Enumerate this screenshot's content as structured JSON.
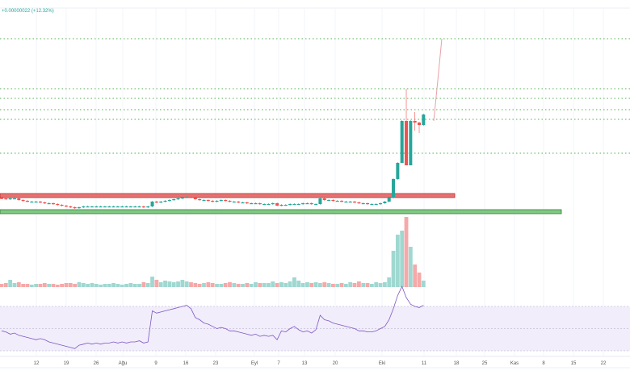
{
  "header": {
    "change_text": "+0.00000022 (+12.32%)"
  },
  "colors": {
    "up": "#26a69a",
    "down": "#ef5350",
    "up_volume": "#9fd8d1",
    "down_volume": "#f5a9a8",
    "level_line": "#4caf50",
    "resistance_band": "#e57373",
    "support_band": "#81c784",
    "rsi_line": "#7e57c2",
    "rsi_band": "#f1edfb",
    "projection": "#e8a0a8"
  },
  "chart_data": {
    "type": "candlestick",
    "x_ticks": [
      "12",
      "19",
      "26",
      "Ağu",
      "9",
      "16",
      "23",
      "Eyl",
      "7",
      "13",
      "20",
      "Eki",
      "11",
      "18",
      "25",
      "Kas",
      "8",
      "15",
      "22"
    ],
    "closes": [
      24,
      23,
      24,
      24,
      22,
      21,
      20,
      20,
      20,
      19,
      18,
      18,
      17,
      16,
      15,
      14,
      13,
      12,
      13,
      14,
      14,
      14,
      14,
      14,
      14,
      14,
      14,
      14,
      14,
      14,
      14,
      14,
      14,
      13,
      14,
      20,
      19,
      20,
      21,
      22,
      23,
      24,
      25,
      26,
      25,
      23,
      22,
      22,
      21,
      20,
      21,
      22,
      21,
      20,
      20,
      19,
      19,
      18,
      18,
      18,
      17,
      17,
      17,
      18,
      15,
      16,
      16,
      17,
      17,
      17,
      18,
      18,
      17,
      17,
      24,
      22,
      22,
      21,
      21,
      20,
      20,
      20,
      19,
      18,
      18,
      17,
      17,
      17,
      18,
      20,
      25,
      48,
      68,
      120,
      65,
      120,
      118,
      115,
      128
    ],
    "volumes": [
      4,
      5,
      9,
      5,
      6,
      4,
      4,
      3,
      4,
      4,
      5,
      4,
      4,
      3,
      4,
      5,
      5,
      4,
      6,
      5,
      4,
      5,
      4,
      3,
      4,
      4,
      5,
      4,
      3,
      4,
      5,
      4,
      4,
      6,
      5,
      13,
      9,
      6,
      8,
      7,
      6,
      7,
      9,
      7,
      6,
      5,
      4,
      5,
      6,
      5,
      4,
      4,
      5,
      6,
      5,
      4,
      4,
      5,
      4,
      6,
      5,
      5,
      5,
      7,
      5,
      6,
      5,
      7,
      12,
      8,
      5,
      6,
      5,
      6,
      5,
      6,
      5,
      4,
      4,
      5,
      4,
      6,
      5,
      7,
      5,
      5,
      4,
      6,
      5,
      6,
      12,
      45,
      65,
      70,
      87,
      50,
      28,
      18,
      8
    ],
    "rsi": [
      48,
      47,
      45,
      46,
      44,
      43,
      42,
      41,
      40,
      41,
      40,
      38,
      37,
      36,
      35,
      34,
      33,
      32,
      35,
      36,
      37,
      36,
      37,
      36,
      37,
      37,
      38,
      37,
      38,
      37,
      38,
      38,
      39,
      37,
      38,
      66,
      64,
      65,
      66,
      67,
      68,
      69,
      70,
      71,
      68,
      60,
      58,
      55,
      54,
      52,
      50,
      51,
      50,
      48,
      48,
      47,
      46,
      45,
      44,
      45,
      43,
      44,
      43,
      44,
      40,
      48,
      47,
      50,
      52,
      49,
      47,
      48,
      46,
      49,
      62,
      58,
      57,
      55,
      54,
      53,
      52,
      51,
      50,
      48,
      48,
      47,
      47,
      48,
      50,
      52,
      58,
      68,
      80,
      88,
      78,
      72,
      70,
      69,
      71
    ],
    "rsi_levels": [
      70,
      50,
      30
    ],
    "horizontal_levels": [
      222,
      160,
      148,
      134,
      122,
      80
    ],
    "resistance_zone": [
      25,
      30
    ],
    "support_zone": [
      5,
      10
    ]
  }
}
